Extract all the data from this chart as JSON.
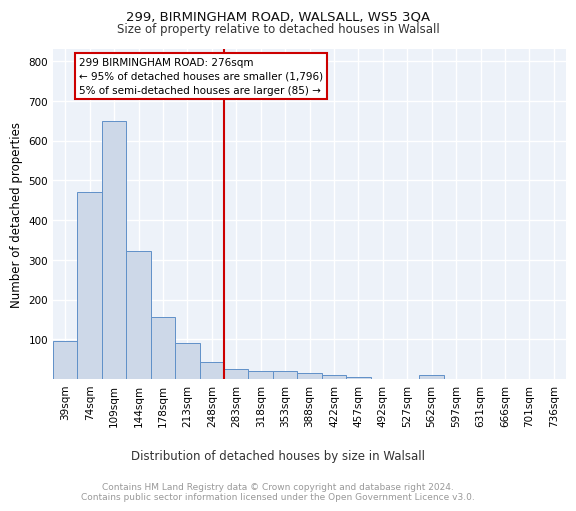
{
  "title1": "299, BIRMINGHAM ROAD, WALSALL, WS5 3QA",
  "title2": "Size of property relative to detached houses in Walsall",
  "xlabel": "Distribution of detached houses by size in Walsall",
  "ylabel": "Number of detached properties",
  "bar_labels": [
    "39sqm",
    "74sqm",
    "109sqm",
    "144sqm",
    "178sqm",
    "213sqm",
    "248sqm",
    "283sqm",
    "318sqm",
    "353sqm",
    "388sqm",
    "422sqm",
    "457sqm",
    "492sqm",
    "527sqm",
    "562sqm",
    "597sqm",
    "631sqm",
    "666sqm",
    "701sqm",
    "736sqm"
  ],
  "bar_values": [
    95,
    470,
    648,
    322,
    157,
    90,
    42,
    25,
    20,
    20,
    16,
    10,
    6,
    0,
    0,
    10,
    0,
    0,
    0,
    0,
    0
  ],
  "bar_color": "#cdd8e8",
  "bar_edge_color": "#6090c8",
  "vline_x_index": 7.0,
  "vline_color": "#cc0000",
  "annotation_text": "299 BIRMINGHAM ROAD: 276sqm\n← 95% of detached houses are smaller (1,796)\n5% of semi-detached houses are larger (85) →",
  "annotation_box_color": "#ffffff",
  "annotation_box_edge": "#cc0000",
  "ylim": [
    0,
    830
  ],
  "yticks": [
    0,
    100,
    200,
    300,
    400,
    500,
    600,
    700,
    800
  ],
  "footer_text": "Contains HM Land Registry data © Crown copyright and database right 2024.\nContains public sector information licensed under the Open Government Licence v3.0.",
  "bg_color": "#edf2f9",
  "grid_color": "#ffffff",
  "title1_fontsize": 9.5,
  "title2_fontsize": 8.5,
  "ylabel_fontsize": 8.5,
  "xlabel_fontsize": 8.5,
  "tick_fontsize": 7.5,
  "annotation_fontsize": 7.5,
  "footer_fontsize": 6.5
}
